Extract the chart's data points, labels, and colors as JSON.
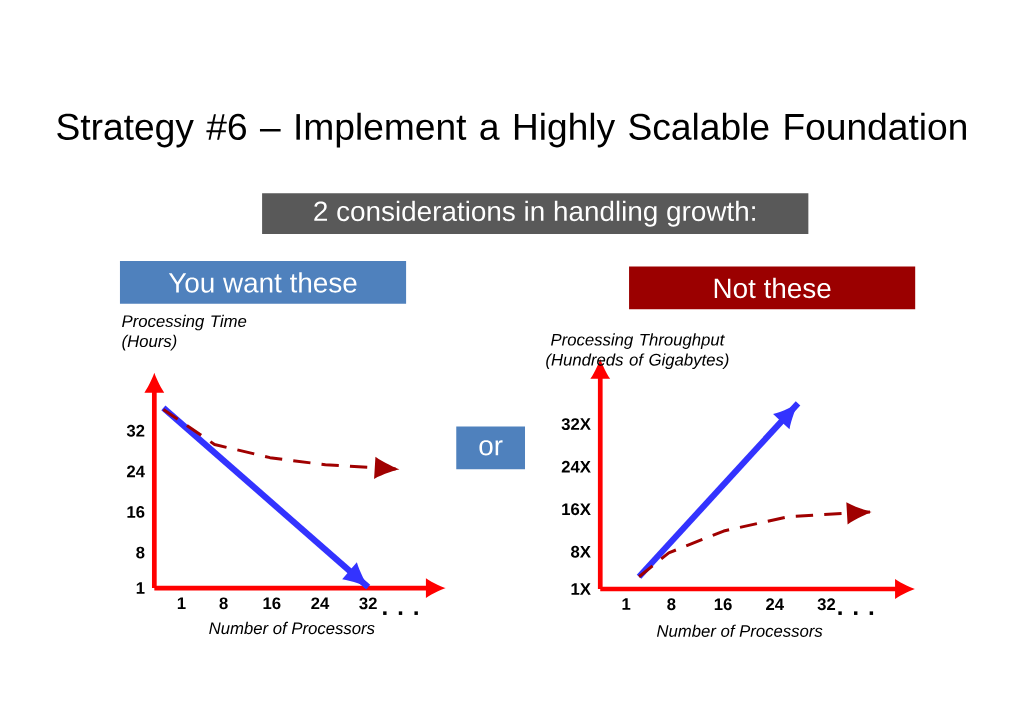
{
  "chart_data": [
    {
      "type": "line",
      "title": "Strategy #6 – Implement a Highly Scalable Foundation",
      "subtitle": "2 considerations in handling growth:",
      "ylabel": "Processing Time (Hours)",
      "xlabel": "Number of Processors",
      "annotations": [
        "You want these",
        ". . .",
        "or"
      ],
      "xlim": [
        -3.5,
        42
      ],
      "ylim": [
        1,
        40
      ],
      "xticks": [
        1,
        8,
        16,
        24,
        32
      ],
      "yticks": [
        1,
        8,
        16,
        24,
        32
      ],
      "marker": "none",
      "series": [
        {
          "color": "#3333ff",
          "line_style": "solid",
          "x": [
            -2,
            32
          ],
          "values": [
            36.5,
            1.2
          ]
        },
        {
          "color": "#a00000",
          "line_style": "dashed",
          "x": [
            -2,
            6.5,
            15.7,
            24.9,
            37.2
          ],
          "values": [
            36.2,
            29.3,
            26.7,
            25.3,
            24.4
          ]
        }
      ]
    },
    {
      "type": "line",
      "ylabel": "Processing Throughput (Hundreds of Gigabytes)",
      "xlabel": "Number of Processors",
      "annotations": [
        "Not these",
        ". . ."
      ],
      "xlim": [
        -3,
        43
      ],
      "ylim": [
        1,
        41
      ],
      "xticks": [
        1,
        8,
        16,
        24,
        32
      ],
      "yticks": [
        {
          "value": 1,
          "label": "1X"
        },
        {
          "value": 8,
          "label": "8X"
        },
        {
          "value": 16,
          "label": "16X"
        },
        {
          "value": 24,
          "label": "24X"
        },
        {
          "value": 32,
          "label": "32X"
        }
      ],
      "marker": "none",
      "series": [
        {
          "color": "#3333ff",
          "line_style": "solid",
          "x": [
            3,
            27.6
          ],
          "values": [
            3.3,
            35.9
          ]
        },
        {
          "color": "#a00000",
          "line_style": "dashed",
          "x": [
            3,
            7.6,
            16.1,
            26.1,
            39
          ],
          "values": [
            3.3,
            7.8,
            11.9,
            14.6,
            15.5
          ]
        }
      ]
    }
  ]
}
